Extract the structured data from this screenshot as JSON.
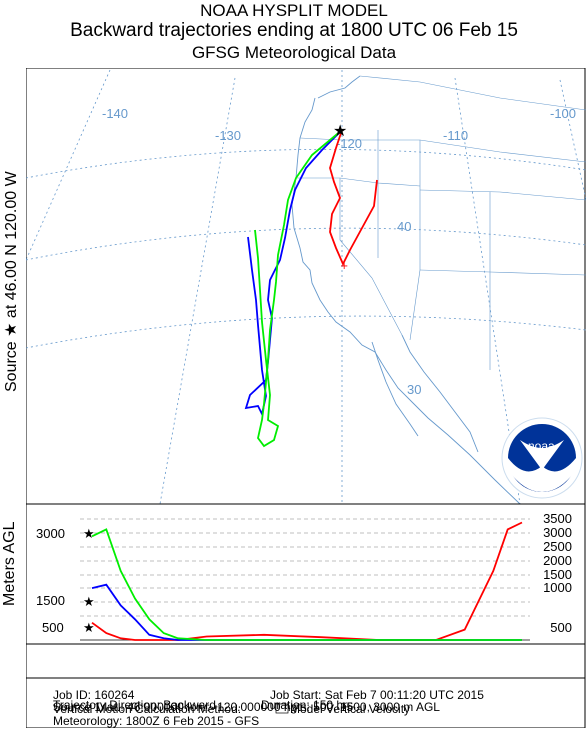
{
  "header": {
    "line1": "NOAA HYSPLIT MODEL",
    "line2": "Backward trajectories ending at 1800 UTC 06 Feb 15",
    "line3": "GFSG Meteorological Data"
  },
  "map": {
    "source_label": "Source ★ at   46.00 N  120.00 W",
    "lon_labels": [
      "-140",
      "-130",
      "-120",
      "-110",
      "-100"
    ],
    "lat_labels": [
      "40",
      "30"
    ],
    "logo_text": "noaa",
    "colors": {
      "traj_500": "#ff0000",
      "traj_1500": "#0000ff",
      "traj_3000": "#00ee00",
      "grid": "#6699cc",
      "coast": "#6699cc"
    }
  },
  "height_panel": {
    "ylabel": "Meters AGL",
    "left_ticks": [
      "3000",
      "1500",
      "500"
    ],
    "right_ticks": [
      "3500",
      "3000",
      "2500",
      "2000",
      "1500",
      "1000",
      "500"
    ]
  },
  "chart_data": {
    "type": "line",
    "title": "Backward trajectories ending at 1800 UTC 06 Feb 15",
    "ylabel": "Meters AGL",
    "x_hours_back": [
      0,
      5,
      10,
      15,
      20,
      25,
      30,
      40,
      60,
      80,
      100,
      120,
      130,
      140,
      145,
      150
    ],
    "series": [
      {
        "values": [
          500,
          200,
          50,
          0,
          0,
          0,
          0,
          100,
          150,
          80,
          0,
          0,
          300,
          2000,
          3200,
          3400
        ]
      },
      {
        "values": [
          1500,
          1600,
          1000,
          600,
          150,
          50,
          0,
          0,
          0,
          0,
          0,
          0,
          0,
          0,
          0,
          0
        ]
      },
      {
        "values": [
          3000,
          3200,
          2000,
          1200,
          600,
          200,
          50,
          0,
          0,
          0,
          0,
          0,
          0,
          0,
          0,
          0
        ]
      }
    ],
    "ylim": [
      0,
      3500
    ]
  },
  "info": {
    "job_id": "Job ID: 160264",
    "job_start": "Job Start: Sat Feb  7 00:11:20 UTC 2015",
    "source_line": "Source 1 lat.: 46.000000  lon.: -120.000000  hgts: 500, 1500, 3000 m AGL",
    "direction": "Trajectory Direction: Backward",
    "duration": "Duration: 150 hrs",
    "vertical_method": "Vertical Motion Calculation Method:",
    "vertical_value": "Model Vertical Velocity",
    "meteorology": "Meteorology: 1800Z  6 Feb 2015 - GFS"
  }
}
